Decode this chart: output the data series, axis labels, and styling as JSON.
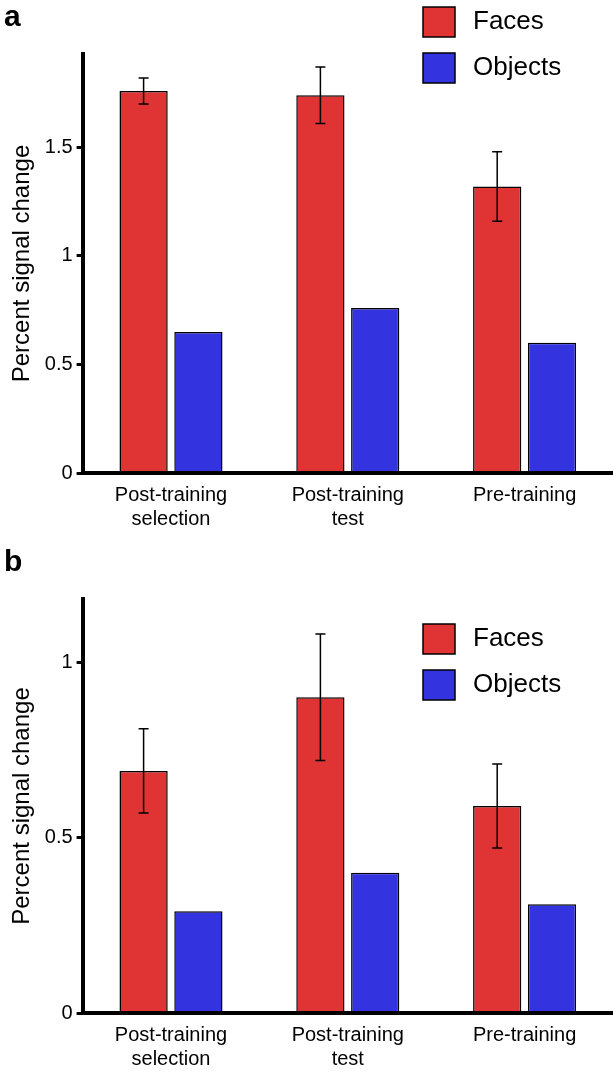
{
  "chart_data": [
    {
      "type": "bar",
      "title": "a",
      "ylabel": "Percent signal change",
      "categories": [
        "Post-training selection",
        "Post-training test",
        "Pre-training"
      ],
      "series": [
        {
          "name": "Faces",
          "color": "#e03333",
          "values": [
            1.76,
            1.74,
            1.32
          ],
          "errors": [
            0.06,
            0.13,
            0.16
          ]
        },
        {
          "name": "Objects",
          "color": "#3333e0",
          "values": [
            0.65,
            0.76,
            0.6
          ]
        }
      ],
      "ylim": [
        0,
        1.93
      ],
      "yticks": [
        0,
        0.5,
        1,
        1.5
      ],
      "grid": false,
      "legend": "top right"
    },
    {
      "type": "bar",
      "title": "b",
      "ylabel": "Percent signal change",
      "categories": [
        "Post-training selection",
        "Post-training test",
        "Pre-training"
      ],
      "series": [
        {
          "name": "Faces",
          "color": "#e03333",
          "values": [
            0.69,
            0.9,
            0.59
          ],
          "errors": [
            0.12,
            0.18,
            0.12
          ]
        },
        {
          "name": "Objects",
          "color": "#3333e0",
          "values": [
            0.29,
            0.4,
            0.31
          ]
        }
      ],
      "ylim": [
        0,
        1.18
      ],
      "yticks": [
        0,
        0.5,
        1
      ],
      "grid": false,
      "legend": "top right"
    }
  ]
}
